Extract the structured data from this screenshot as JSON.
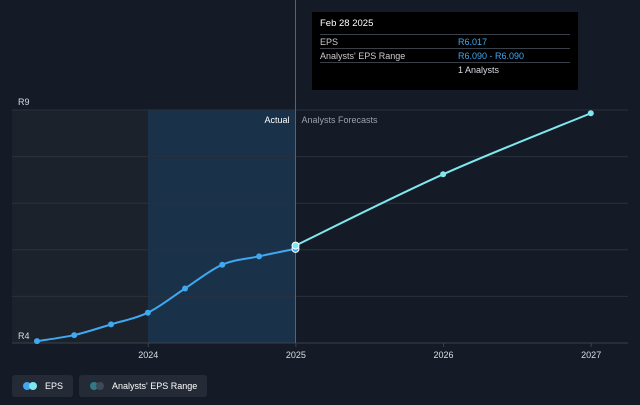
{
  "tooltip": {
    "date": "Feb 28 2025",
    "rows": [
      {
        "label": "EPS",
        "value": "R6.017"
      },
      {
        "label": "Analysts' EPS Range",
        "value": "R6.090 - R6.090"
      },
      {
        "label": "",
        "value": "1 Analysts"
      }
    ]
  },
  "legend": {
    "eps_label": "EPS",
    "range_label": "Analysts' EPS Range"
  },
  "colors": {
    "background": "#151b26",
    "actual_line": "#3fa8f0",
    "forecast_line": "#7fe8ef",
    "actual_region": "#1a3550",
    "past_region": "#1c222c",
    "range_dot": "#2f7a86"
  },
  "chart_data": {
    "type": "line",
    "ylim": [
      4,
      9
    ],
    "y_tick_labels": [
      {
        "value": 9,
        "label": "R9"
      },
      {
        "value": 4,
        "label": "R4"
      }
    ],
    "x_ticks": [
      {
        "x": "2024-03-01",
        "label": "2024"
      },
      {
        "x": "2025-03-01",
        "label": "2025"
      },
      {
        "x": "2026-03-01",
        "label": "2026"
      },
      {
        "x": "2027-03-01",
        "label": "2027"
      }
    ],
    "x_range": [
      "2023-05-31",
      "2027-05-31"
    ],
    "region_labels": {
      "actual": "Actual",
      "forecast": "Analysts Forecasts"
    },
    "actual_region_start": "2024-02-29",
    "divider_date": "2025-02-28",
    "series": [
      {
        "name": "EPS",
        "kind": "actual",
        "points": [
          {
            "x": "2023-05-31",
            "y": 4.04
          },
          {
            "x": "2023-08-31",
            "y": 4.17
          },
          {
            "x": "2023-11-30",
            "y": 4.4
          },
          {
            "x": "2024-02-29",
            "y": 4.65
          },
          {
            "x": "2024-05-31",
            "y": 5.17
          },
          {
            "x": "2024-08-31",
            "y": 5.68
          },
          {
            "x": "2024-11-30",
            "y": 5.86
          },
          {
            "x": "2025-02-28",
            "y": 6.02
          }
        ]
      },
      {
        "name": "Analysts' EPS Range",
        "kind": "forecast",
        "points": [
          {
            "x": "2025-02-28",
            "y": 6.09
          },
          {
            "x": "2026-02-28",
            "y": 7.62
          },
          {
            "x": "2027-02-28",
            "y": 8.93
          }
        ]
      }
    ]
  }
}
